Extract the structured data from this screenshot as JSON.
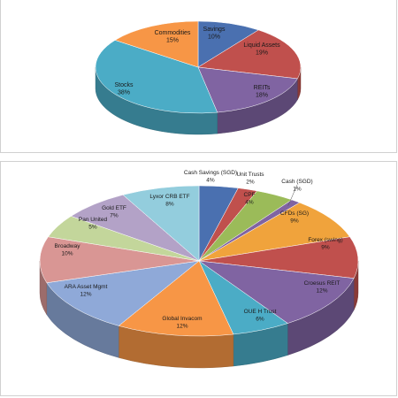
{
  "chart_data": [
    {
      "type": "pie",
      "style": "3d",
      "slices": [
        {
          "label": "Savings",
          "value": 10,
          "pct_label": "10%",
          "color": "#4a70b0"
        },
        {
          "label": "Liquid Assets",
          "value": 19,
          "pct_label": "19%",
          "color": "#c0504d"
        },
        {
          "label": "REITs",
          "value": 18,
          "pct_label": "18%",
          "color": "#8064a2"
        },
        {
          "label": "Stocks",
          "value": 38,
          "pct_label": "38%",
          "color": "#4bacc6"
        },
        {
          "label": "Commodities",
          "value": 15,
          "pct_label": "15%",
          "color": "#f79646"
        }
      ]
    },
    {
      "type": "pie",
      "style": "3d",
      "slices": [
        {
          "label": "Cash Savings (SGD)",
          "value": 4,
          "pct_label": "4%",
          "color": "#4a70b0"
        },
        {
          "label": "Unit Trusts",
          "value": 2,
          "pct_label": "2%",
          "color": "#c0504d"
        },
        {
          "label": "CPF",
          "value": 4,
          "pct_label": "4%",
          "color": "#9bbb59"
        },
        {
          "label": "Cash (SGD)",
          "value": 1,
          "pct_label": "1%",
          "color": "#8064a2"
        },
        {
          "label": "CFDs (SG)",
          "value": 9,
          "pct_label": "9%",
          "color": "#f0a33c"
        },
        {
          "label": "Forex (swing)",
          "value": 9,
          "pct_label": "9%",
          "color": "#c0504d"
        },
        {
          "label": "Croesus REIT",
          "value": 12,
          "pct_label": "12%",
          "color": "#8064a2"
        },
        {
          "label": "OUE H Trust",
          "value": 6,
          "pct_label": "6%",
          "color": "#4bacc6"
        },
        {
          "label": "Global Invacom",
          "value": 12,
          "pct_label": "12%",
          "color": "#f79646"
        },
        {
          "label": "ARA Asset Mgmt",
          "value": 12,
          "pct_label": "12%",
          "color": "#8fa9d8"
        },
        {
          "label": "Broadway",
          "value": 10,
          "pct_label": "10%",
          "color": "#d99694"
        },
        {
          "label": "Pan United",
          "value": 5,
          "pct_label": "5%",
          "color": "#c3d69b"
        },
        {
          "label": "Gold ETF",
          "value": 7,
          "pct_label": "7%",
          "color": "#b3a2c7"
        },
        {
          "label": "Lyxor CRB ETF",
          "value": 8,
          "pct_label": "8%",
          "color": "#93cddd"
        }
      ]
    }
  ]
}
